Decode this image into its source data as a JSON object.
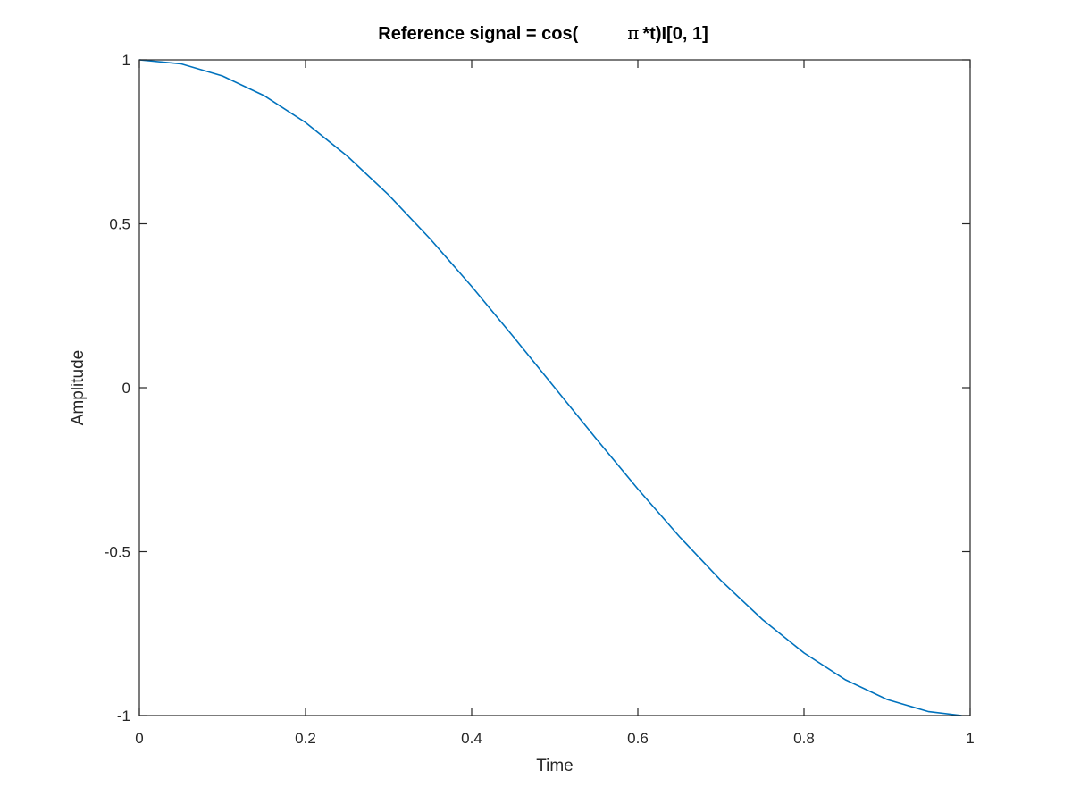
{
  "chart_data": {
    "type": "line",
    "title_prefix": "Reference signal = cos(",
    "title_symbol": "π",
    "title_suffix": "*t)I[0, 1]",
    "xlabel": "Time",
    "ylabel": "Amplitude",
    "xlim": [
      0,
      1
    ],
    "ylim": [
      -1,
      1
    ],
    "x_ticks": [
      0,
      0.2,
      0.4,
      0.6,
      0.8,
      1
    ],
    "x_tick_labels": [
      "0",
      "0.2",
      "0.4",
      "0.6",
      "0.8",
      "1"
    ],
    "y_ticks": [
      -1,
      -0.5,
      0,
      0.5,
      1
    ],
    "y_tick_labels": [
      "-1",
      "-0.5",
      "0",
      "0.5",
      "1"
    ],
    "grid": false,
    "line_color": "#0072bd",
    "series": [
      {
        "x": [
          0,
          0.05,
          0.1,
          0.15,
          0.2,
          0.25,
          0.3,
          0.35,
          0.4,
          0.45,
          0.5,
          0.55,
          0.6,
          0.65,
          0.7,
          0.75,
          0.8,
          0.85,
          0.9,
          0.95,
          0.99
        ],
        "y": [
          1,
          0.988,
          0.951,
          0.891,
          0.809,
          0.707,
          0.588,
          0.454,
          0.309,
          0.156,
          0,
          -0.156,
          -0.309,
          -0.454,
          -0.588,
          -0.707,
          -0.809,
          -0.891,
          -0.951,
          -0.988,
          -1
        ]
      }
    ]
  }
}
